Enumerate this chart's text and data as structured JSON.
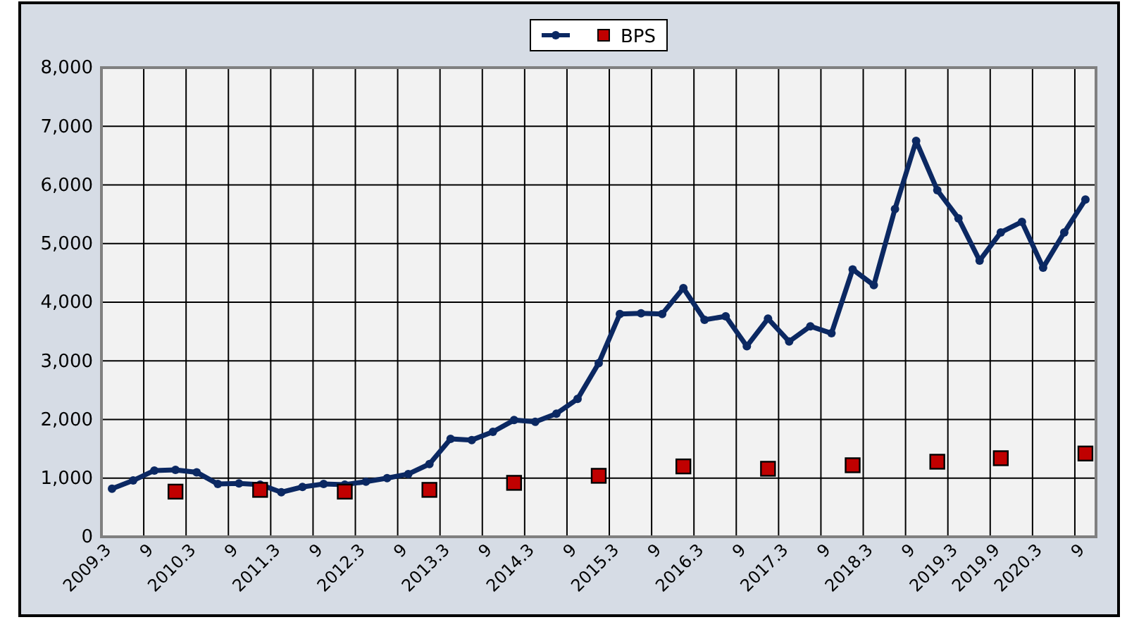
{
  "chart_data": {
    "type": "line",
    "categories": [
      "2009.3",
      null,
      "9",
      null,
      "2010.3",
      null,
      "9",
      null,
      "2011.3",
      null,
      "9",
      null,
      "2012.3",
      null,
      "9",
      null,
      "2013.3",
      null,
      "9",
      null,
      "2014.3",
      null,
      "9",
      null,
      "2015.3",
      null,
      "9",
      null,
      "2016.3",
      null,
      "9",
      null,
      "2017.3",
      null,
      "9",
      null,
      "2018.3",
      null,
      "9",
      null,
      "2019.3",
      null,
      "2019.9",
      null,
      "2020.3",
      null,
      "9"
    ],
    "series": [
      {
        "color": "#0b2862",
        "marker": "circle",
        "values": [
          820,
          960,
          1130,
          1140,
          1100,
          900,
          910,
          890,
          760,
          850,
          900,
          890,
          940,
          1000,
          1070,
          1240,
          1670,
          1650,
          1790,
          1990,
          1960,
          2100,
          2350,
          2960,
          3800,
          3810,
          3800,
          4240,
          3700,
          3760,
          3250,
          3720,
          3330,
          3590,
          3470,
          4560,
          4290,
          5590,
          6750,
          5910,
          5430,
          4710,
          5190,
          5370,
          4590,
          5190,
          5750
        ]
      },
      {
        "name": "BPS",
        "type": "scatter",
        "color": "#c00000",
        "marker": "square",
        "values": [
          null,
          null,
          null,
          770,
          null,
          null,
          null,
          800,
          null,
          null,
          null,
          770,
          null,
          null,
          null,
          800,
          null,
          null,
          null,
          920,
          null,
          null,
          null,
          1040,
          null,
          null,
          null,
          1200,
          null,
          null,
          null,
          1160,
          null,
          null,
          null,
          1220,
          null,
          null,
          null,
          1280,
          null,
          null,
          1340,
          null,
          null,
          null,
          1420
        ]
      }
    ],
    "ylim": [
      0,
      8000
    ],
    "yticks": [
      {
        "value": 0,
        "label": "0"
      },
      {
        "value": 1000,
        "label": "1,000"
      },
      {
        "value": 2000,
        "label": "2,000"
      },
      {
        "value": 3000,
        "label": "3,000"
      },
      {
        "value": 4000,
        "label": "4,000"
      },
      {
        "value": 5000,
        "label": "5,000"
      },
      {
        "value": 6000,
        "label": "6,000"
      },
      {
        "value": 7000,
        "label": "7,000"
      },
      {
        "value": 8000,
        "label": "8,000"
      }
    ],
    "grid": true,
    "legend": "top"
  }
}
